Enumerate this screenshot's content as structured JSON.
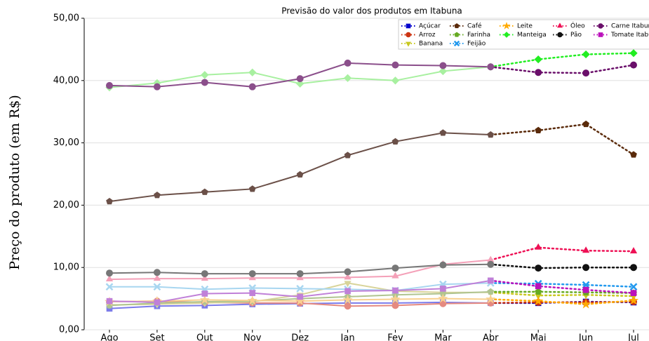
{
  "chart_data": {
    "type": "line",
    "title": "Previsão do valor dos produtos em Itabuna",
    "y_label": "Preço do produto (em R$)",
    "categories": [
      "Ago",
      "Set",
      "Out",
      "Nov",
      "Dez",
      "Jan",
      "Fev",
      "Mar",
      "Abr",
      "Mai",
      "Jun",
      "Jul"
    ],
    "forecast_from": "Abr",
    "ylim": [
      0,
      50
    ],
    "yticks": [
      {
        "value": 0,
        "label": "0,00"
      },
      {
        "value": 10,
        "label": "10,00"
      },
      {
        "value": 20,
        "label": "20,00"
      },
      {
        "value": 30,
        "label": "30,00"
      },
      {
        "value": 40,
        "label": "40,00"
      },
      {
        "value": 50,
        "label": "50,00"
      }
    ],
    "grid": true,
    "legend": "upper right",
    "series": [
      {
        "name": "Açúcar",
        "color": "#0000cc",
        "history_color": "#7b7bea",
        "marker": "square",
        "values": [
          3.4,
          3.8,
          3.9,
          4.1,
          4.2,
          4.3,
          4.3,
          4.4,
          4.3,
          4.3,
          4.5,
          4.4
        ]
      },
      {
        "name": "Arroz",
        "color": "#cc3311",
        "history_color": "#e58a80",
        "marker": "circle",
        "values": [
          4.5,
          4.6,
          4.4,
          4.3,
          4.3,
          3.8,
          3.9,
          4.2,
          4.3,
          4.4,
          4.4,
          4.5
        ]
      },
      {
        "name": "Banana",
        "color": "#c8c820",
        "history_color": "#d8d49a",
        "marker": "tri-down",
        "values": [
          4.0,
          4.1,
          4.3,
          4.5,
          5.6,
          7.5,
          6.2,
          6.0,
          6.0,
          5.5,
          5.6,
          5.4
        ]
      },
      {
        "name": "Café",
        "color": "#5a2a0a",
        "history_color": "#6b5048",
        "marker": "pentagon",
        "values": [
          20.6,
          21.6,
          22.1,
          22.6,
          24.9,
          28.0,
          30.2,
          31.6,
          31.3,
          32.0,
          33.0,
          28.1
        ]
      },
      {
        "name": "Farinha",
        "color": "#66aa22",
        "history_color": "#b0c490",
        "marker": "pentagon",
        "values": [
          3.9,
          4.3,
          4.5,
          4.6,
          5.0,
          5.3,
          5.6,
          5.8,
          6.1,
          6.1,
          6.0,
          5.9
        ]
      },
      {
        "name": "Feijão",
        "color": "#2299ee",
        "history_color": "#a8d6f0",
        "marker": "x",
        "values": [
          6.9,
          6.9,
          6.5,
          6.7,
          6.6,
          6.5,
          6.3,
          7.3,
          7.5,
          7.4,
          7.2,
          6.9
        ]
      },
      {
        "name": "Leite",
        "color": "#ffaa00",
        "history_color": "#f8d090",
        "marker": "star",
        "values": [
          4.5,
          4.6,
          4.8,
          4.7,
          4.6,
          4.8,
          4.9,
          5.0,
          4.9,
          4.6,
          4.1,
          4.7
        ]
      },
      {
        "name": "Manteiga",
        "color": "#22ee22",
        "history_color": "#a8f0a0",
        "marker": "diamond",
        "values": [
          38.9,
          39.6,
          40.9,
          41.3,
          39.5,
          40.4,
          40.0,
          41.5,
          42.2,
          43.4,
          44.2,
          44.4
        ]
      },
      {
        "name": "Óleo",
        "color": "#ee1155",
        "history_color": "#f4a0b8",
        "marker": "tri-up",
        "values": [
          8.1,
          8.2,
          8.2,
          8.3,
          8.3,
          8.4,
          8.6,
          10.5,
          11.2,
          13.2,
          12.7,
          12.6
        ]
      },
      {
        "name": "Pão",
        "color": "#111111",
        "history_color": "#777777",
        "marker": "circle",
        "values": [
          9.1,
          9.2,
          9.0,
          9.0,
          9.0,
          9.3,
          9.9,
          10.4,
          10.5,
          9.9,
          10.0,
          10.0
        ]
      },
      {
        "name": "Carne Itabuna",
        "color": "#6a0f6a",
        "history_color": "#8b4f8b",
        "marker": "circle",
        "values": [
          39.2,
          39.0,
          39.7,
          39.0,
          40.3,
          42.8,
          42.5,
          42.4,
          42.2,
          41.3,
          41.2,
          42.5
        ]
      },
      {
        "name": "Tomate Itabuna",
        "color": "#bb11bb",
        "history_color": "#c080d8",
        "marker": "square",
        "values": [
          4.6,
          4.4,
          5.8,
          5.9,
          5.3,
          6.2,
          6.3,
          6.6,
          7.9,
          7.0,
          6.4,
          5.9
        ]
      }
    ]
  }
}
